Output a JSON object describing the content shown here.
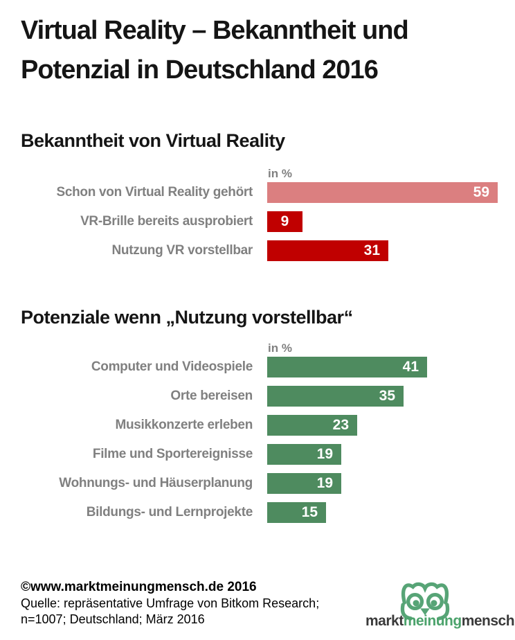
{
  "page": {
    "title": "Virtual Reality – Bekanntheit und Potenzial in Deutschland 2016"
  },
  "chart_data": [
    {
      "type": "bar",
      "orientation": "horizontal",
      "title": "Bekanntheit von Virtual Reality",
      "unit_label": "in %",
      "categories": [
        "Schon von Virtual Reality gehört",
        "VR-Brille bereits ausprobiert",
        "Nutzung VR vorstellbar"
      ],
      "values": [
        59,
        9,
        31
      ],
      "bar_colors": [
        "#DB7F80",
        "#C00000",
        "#C00000"
      ],
      "xlim": [
        0,
        59
      ],
      "grid": false,
      "legend": false,
      "value_labels": "inside-end, white bold"
    },
    {
      "type": "bar",
      "orientation": "horizontal",
      "title": "Potenziale wenn „Nutzung vorstellbar“",
      "unit_label": "in %",
      "categories": [
        "Computer und Videospiele",
        "Orte bereisen",
        "Musikkonzerte erleben",
        "Filme und Sportereignisse",
        "Wohnungs- und Häuserplanung",
        "Bildungs- und Lernprojekte"
      ],
      "values": [
        41,
        35,
        23,
        19,
        19,
        15
      ],
      "bar_colors": [
        "#4E8B5F",
        "#4E8B5F",
        "#4E8B5F",
        "#4E8B5F",
        "#4E8B5F",
        "#4E8B5F"
      ],
      "xlim": [
        0,
        59
      ],
      "grid": false,
      "legend": false,
      "value_labels": "inside-end, white bold"
    }
  ],
  "footer": {
    "copyright": "©www.marktmeinungmensch.de 2016",
    "source_line_1": "Quelle: repräsentative Umfrage von Bitkom Research;",
    "source_line_2": "n=1007; Deutschland; März 2016"
  },
  "logo": {
    "icon": "owl-icon",
    "text_parts": [
      {
        "text": "markt",
        "color": "#3A3A3A"
      },
      {
        "text": "meinung",
        "color": "#4CA36C"
      },
      {
        "text": "mensch",
        "color": "#3A3A3A"
      }
    ]
  },
  "colors": {
    "bar_pink": "#DB7F80",
    "bar_red": "#C00000",
    "bar_green": "#4E8B5F",
    "label_gray": "#808080",
    "logo_green": "#57A476",
    "title_black": "#151515"
  }
}
